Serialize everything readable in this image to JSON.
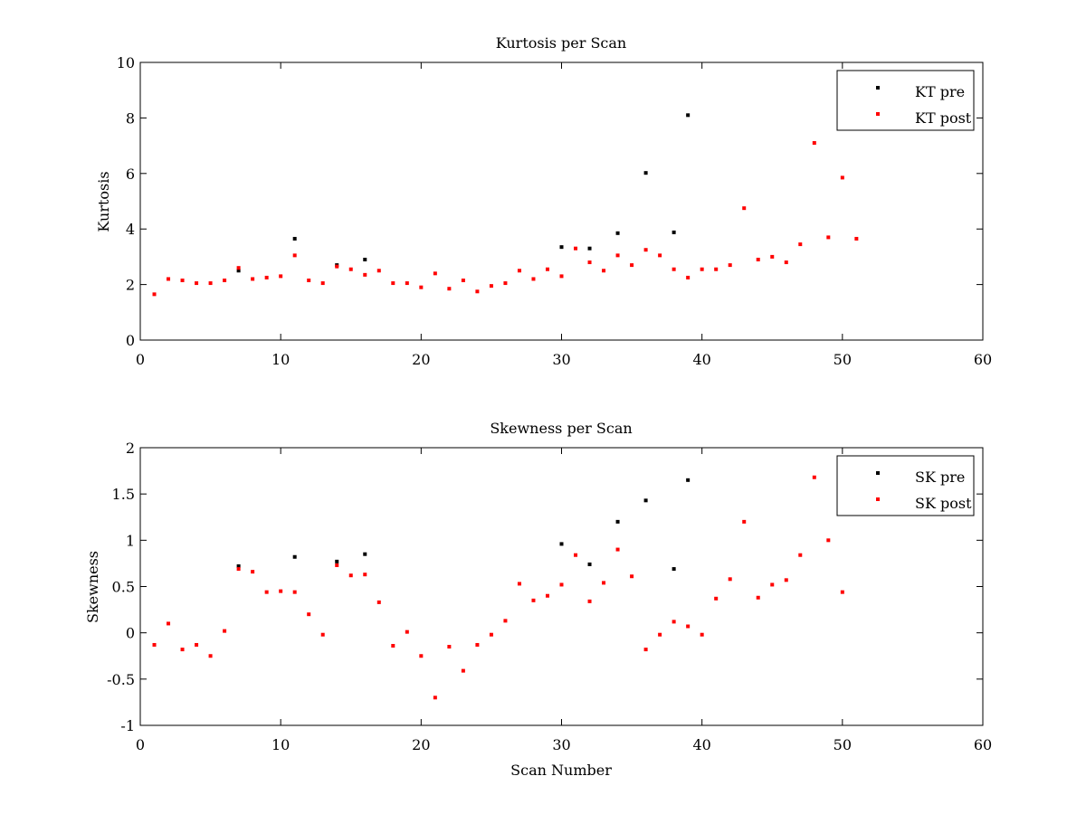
{
  "chart_data": [
    {
      "type": "scatter",
      "title": "Kurtosis per Scan",
      "xlabel": "",
      "ylabel": "Kurtosis",
      "xlim": [
        0,
        60
      ],
      "ylim": [
        0,
        10
      ],
      "xticks": [
        0,
        10,
        20,
        30,
        40,
        50,
        60
      ],
      "yticks": [
        0,
        2,
        4,
        6,
        8,
        10
      ],
      "grid": false,
      "legend_position": "top-right",
      "series": [
        {
          "name": "KT pre",
          "color": "#000000",
          "points": [
            [
              7,
              2.5
            ],
            [
              11,
              3.65
            ],
            [
              14,
              2.7
            ],
            [
              16,
              2.9
            ],
            [
              30,
              3.35
            ],
            [
              32,
              3.3
            ],
            [
              34,
              3.85
            ],
            [
              36,
              6.02
            ],
            [
              38,
              3.88
            ],
            [
              39,
              8.1
            ]
          ]
        },
        {
          "name": "KT post",
          "color": "#ff0000",
          "points": [
            [
              1,
              1.65
            ],
            [
              2,
              2.2
            ],
            [
              3,
              2.15
            ],
            [
              4,
              2.05
            ],
            [
              5,
              2.05
            ],
            [
              6,
              2.15
            ],
            [
              7,
              2.6
            ],
            [
              8,
              2.2
            ],
            [
              9,
              2.25
            ],
            [
              10,
              2.3
            ],
            [
              11,
              3.05
            ],
            [
              12,
              2.15
            ],
            [
              13,
              2.05
            ],
            [
              14,
              2.65
            ],
            [
              15,
              2.55
            ],
            [
              16,
              2.35
            ],
            [
              17,
              2.5
            ],
            [
              18,
              2.05
            ],
            [
              19,
              2.05
            ],
            [
              20,
              1.9
            ],
            [
              21,
              2.4
            ],
            [
              22,
              1.85
            ],
            [
              23,
              2.15
            ],
            [
              24,
              1.75
            ],
            [
              25,
              1.95
            ],
            [
              26,
              2.05
            ],
            [
              27,
              2.5
            ],
            [
              28,
              2.2
            ],
            [
              29,
              2.55
            ],
            [
              30,
              2.3
            ],
            [
              31,
              3.3
            ],
            [
              32,
              2.8
            ],
            [
              33,
              2.5
            ],
            [
              34,
              3.05
            ],
            [
              35,
              2.7
            ],
            [
              36,
              3.25
            ],
            [
              37,
              3.05
            ],
            [
              38,
              2.55
            ],
            [
              39,
              2.25
            ],
            [
              40,
              2.55
            ],
            [
              41,
              2.55
            ],
            [
              42,
              2.7
            ],
            [
              43,
              4.75
            ],
            [
              44,
              2.9
            ],
            [
              45,
              3.0
            ],
            [
              46,
              2.8
            ],
            [
              47,
              3.45
            ],
            [
              48,
              7.1
            ],
            [
              49,
              3.7
            ],
            [
              50,
              5.85
            ],
            [
              51,
              3.65
            ]
          ]
        }
      ]
    },
    {
      "type": "scatter",
      "title": "Skewness per Scan",
      "xlabel": "Scan Number",
      "ylabel": "Skewness",
      "xlim": [
        0,
        60
      ],
      "ylim": [
        -1,
        2
      ],
      "xticks": [
        0,
        10,
        20,
        30,
        40,
        50,
        60
      ],
      "yticks": [
        -1,
        -0.5,
        0,
        0.5,
        1,
        1.5,
        2
      ],
      "grid": false,
      "legend_position": "top-right",
      "series": [
        {
          "name": "SK pre",
          "color": "#000000",
          "points": [
            [
              7,
              0.72
            ],
            [
              11,
              0.82
            ],
            [
              14,
              0.77
            ],
            [
              16,
              0.85
            ],
            [
              30,
              0.96
            ],
            [
              32,
              0.74
            ],
            [
              34,
              1.2
            ],
            [
              36,
              1.43
            ],
            [
              38,
              0.69
            ],
            [
              39,
              1.65
            ]
          ]
        },
        {
          "name": "SK post",
          "color": "#ff0000",
          "points": [
            [
              1,
              -0.13
            ],
            [
              2,
              0.1
            ],
            [
              3,
              -0.18
            ],
            [
              4,
              -0.13
            ],
            [
              5,
              -0.25
            ],
            [
              6,
              0.02
            ],
            [
              7,
              0.69
            ],
            [
              8,
              0.66
            ],
            [
              9,
              0.44
            ],
            [
              10,
              0.45
            ],
            [
              11,
              0.44
            ],
            [
              12,
              0.2
            ],
            [
              13,
              -0.02
            ],
            [
              14,
              0.73
            ],
            [
              15,
              0.62
            ],
            [
              16,
              0.63
            ],
            [
              17,
              0.33
            ],
            [
              18,
              -0.14
            ],
            [
              19,
              0.01
            ],
            [
              20,
              -0.25
            ],
            [
              21,
              -0.7
            ],
            [
              22,
              -0.15
            ],
            [
              23,
              -0.41
            ],
            [
              24,
              -0.13
            ],
            [
              25,
              -0.02
            ],
            [
              26,
              0.13
            ],
            [
              27,
              0.53
            ],
            [
              28,
              0.35
            ],
            [
              29,
              0.4
            ],
            [
              30,
              0.52
            ],
            [
              31,
              0.84
            ],
            [
              32,
              0.34
            ],
            [
              33,
              0.54
            ],
            [
              34,
              0.9
            ],
            [
              35,
              0.61
            ],
            [
              36,
              -0.18
            ],
            [
              37,
              -0.02
            ],
            [
              38,
              0.12
            ],
            [
              39,
              0.07
            ],
            [
              40,
              -0.02
            ],
            [
              41,
              0.37
            ],
            [
              42,
              0.58
            ],
            [
              43,
              1.2
            ],
            [
              44,
              0.38
            ],
            [
              45,
              0.52
            ],
            [
              46,
              0.57
            ],
            [
              47,
              0.84
            ],
            [
              48,
              1.68
            ],
            [
              49,
              1.0
            ],
            [
              50,
              0.44
            ]
          ]
        }
      ]
    }
  ]
}
